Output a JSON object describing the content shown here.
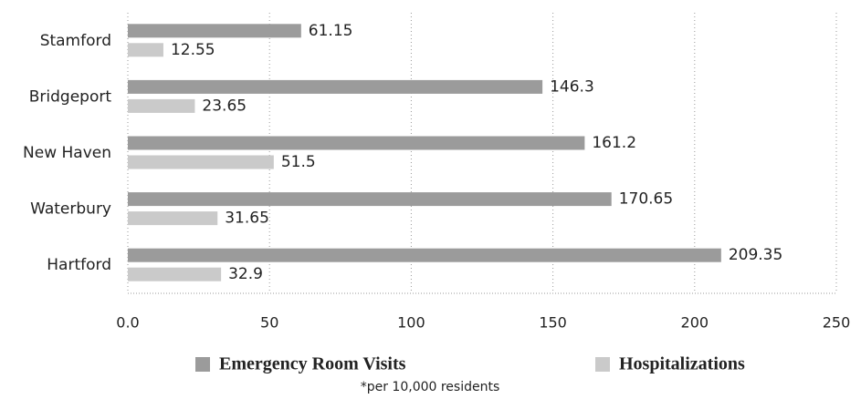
{
  "chart_data": {
    "type": "bar",
    "orientation": "horizontal",
    "categories": [
      "Stamford",
      "Bridgeport",
      "New Haven",
      "Waterbury",
      "Hartford"
    ],
    "series": [
      {
        "name": "Emergency Room Visits",
        "color": "#9b9b9b",
        "values": [
          61.15,
          146.3,
          161.2,
          170.65,
          209.35
        ]
      },
      {
        "name": "Hospitalizations",
        "color": "#cacaca",
        "values": [
          12.55,
          23.65,
          51.5,
          31.65,
          32.9
        ]
      }
    ],
    "xlim": [
      0,
      250
    ],
    "xticks": [
      {
        "value": 0,
        "label": "0.0"
      },
      50,
      100,
      150,
      200,
      250
    ],
    "grid": true,
    "footnote": "*per 10,000 residents"
  }
}
